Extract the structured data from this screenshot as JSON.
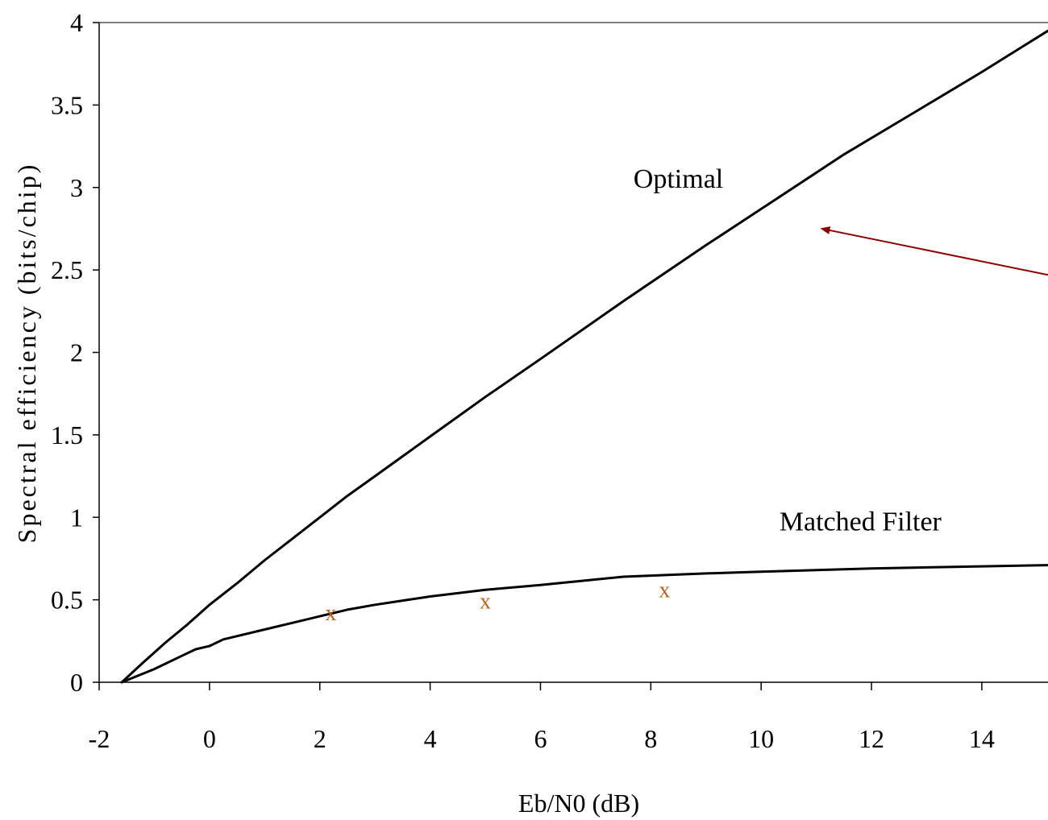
{
  "chart_data": {
    "type": "line",
    "xlabel": "Eb/N0 (dB)",
    "ylabel": "Spectral efficiency (bits/chip)",
    "xlim": [
      -2,
      15.2
    ],
    "ylim": [
      0,
      4
    ],
    "xticks": [
      -2,
      0,
      2,
      4,
      6,
      8,
      10,
      12,
      14
    ],
    "yticks": [
      0,
      0.5,
      1,
      1.5,
      2,
      2.5,
      3,
      3.5,
      4
    ],
    "ytick_labels": [
      "0",
      "0.5",
      "1",
      "1.5",
      "2",
      "2.5",
      "3",
      "3.5",
      "4"
    ],
    "grid": false,
    "series": [
      {
        "name": "Optimal",
        "x": [
          -1.59,
          -1.2,
          -0.8,
          -0.4,
          0,
          0.5,
          1,
          1.5,
          2,
          2.5,
          3,
          3.5,
          4,
          5,
          6,
          7.5,
          9,
          10,
          11.5,
          13,
          14,
          15.2
        ],
        "y": [
          0,
          0.12,
          0.24,
          0.35,
          0.47,
          0.6,
          0.74,
          0.87,
          1.0,
          1.13,
          1.25,
          1.37,
          1.49,
          1.73,
          1.96,
          2.31,
          2.65,
          2.87,
          3.2,
          3.5,
          3.7,
          3.95
        ]
      },
      {
        "name": "Matched Filter",
        "x": [
          -1.59,
          -1,
          -0.5,
          -0.25,
          0,
          0.25,
          0.5,
          1,
          1.5,
          2,
          2.5,
          3,
          4,
          5,
          6,
          7.5,
          9,
          10,
          12,
          15.2
        ],
        "y": [
          0,
          0.08,
          0.16,
          0.2,
          0.22,
          0.26,
          0.28,
          0.32,
          0.36,
          0.4,
          0.44,
          0.47,
          0.52,
          0.56,
          0.59,
          0.64,
          0.66,
          0.67,
          0.69,
          0.71
        ]
      }
    ],
    "markers": {
      "symbol": "x",
      "color": "#b5651d",
      "points": [
        {
          "x": 2.2,
          "y": 0.42
        },
        {
          "x": 5.0,
          "y": 0.49
        },
        {
          "x": 8.25,
          "y": 0.56
        }
      ]
    },
    "annotations": [
      {
        "text": "Optimal",
        "x": 8.5,
        "y": 3.0
      },
      {
        "text": "Matched Filter",
        "x": 11.8,
        "y": 0.92
      }
    ],
    "arrow": {
      "from": {
        "x": 15.2,
        "y": 2.47
      },
      "to": {
        "x": 11.1,
        "y": 2.75
      },
      "color": "#8b0000"
    },
    "line_color": "#000000"
  }
}
